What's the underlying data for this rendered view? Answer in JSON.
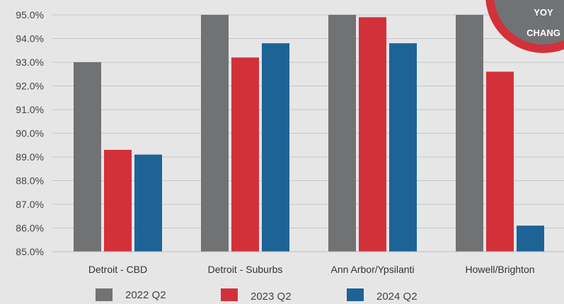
{
  "chart_data": {
    "type": "bar",
    "categories": [
      "Detroit - CBD",
      "Detroit - Suburbs",
      "Ann Arbor/Ypsilanti",
      "Howell/Brighton"
    ],
    "series": [
      {
        "name": "2022 Q2",
        "values": [
          93.0,
          95.0,
          95.0,
          95.0
        ],
        "color": "#717273"
      },
      {
        "name": "2023 Q2",
        "values": [
          89.3,
          93.2,
          94.9,
          92.6
        ],
        "color": "#d3313a"
      },
      {
        "name": "2024 Q2",
        "values": [
          89.1,
          93.8,
          93.8,
          86.1
        ],
        "color": "#1d6396"
      }
    ],
    "yticks": [
      "85.0%",
      "86.0%",
      "87.0%",
      "88.0%",
      "89.0%",
      "90.0%",
      "91.0%",
      "92.0%",
      "93.0%",
      "94.0%",
      "95.0%"
    ],
    "ylim": [
      85,
      95
    ],
    "grid": true,
    "legend_position": "bottom"
  },
  "badge": {
    "line1": "YOY",
    "line2": "CHANG",
    "fill": "#717273",
    "ring": "#d3313a"
  }
}
